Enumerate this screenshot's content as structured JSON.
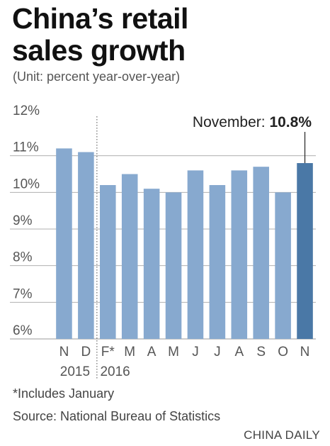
{
  "title_line1": "China’s retail",
  "title_line2": "sales growth",
  "subtitle": "(Unit: percent year-over-year)",
  "footnote": "*Includes January",
  "source": "Source: National Bureau of Statistics",
  "brand": "CHINA DAILY",
  "chart_data": {
    "type": "bar",
    "categories": [
      "N",
      "D",
      "F*",
      "M",
      "A",
      "M",
      "J",
      "J",
      "A",
      "S",
      "O",
      "N"
    ],
    "values": [
      11.2,
      11.1,
      10.2,
      10.5,
      10.1,
      10.0,
      10.6,
      10.2,
      10.6,
      10.7,
      10.0,
      10.8
    ],
    "year_labels": [
      {
        "label": "2015",
        "categories": [
          0,
          1
        ]
      },
      {
        "label": "2016",
        "categories": [
          2,
          11
        ]
      }
    ],
    "yticks": [
      "12%",
      "11%",
      "10%",
      "9%",
      "8%",
      "7%",
      "6%"
    ],
    "ylim": [
      6,
      12
    ],
    "grid": true,
    "annotation": {
      "label": "November: ",
      "value": "10.8%",
      "category_index": 11
    },
    "colors": {
      "bar": "#87a9cf",
      "highlight": "#4a78a6",
      "grid": "#b0b0b0"
    }
  }
}
